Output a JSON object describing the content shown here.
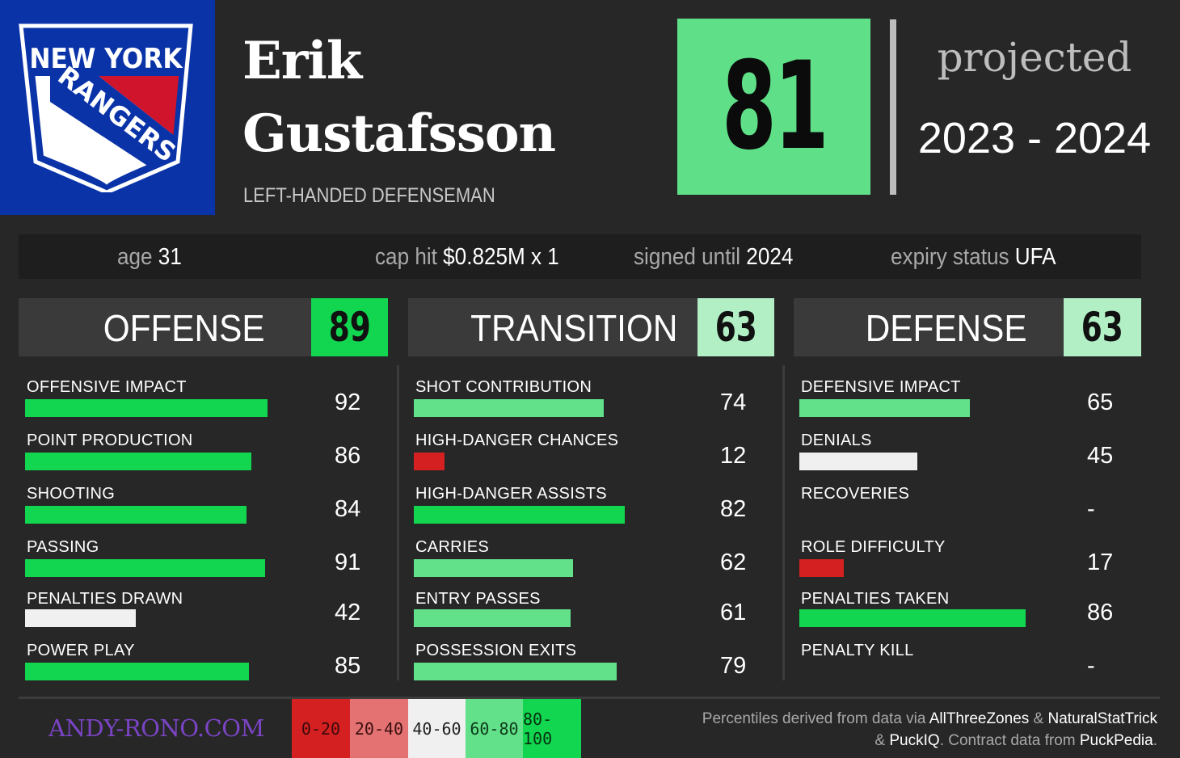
{
  "team": {
    "logo_top": "NEW YORK",
    "logo_band": "RANGERS",
    "colors": {
      "blue": "#0a33a8",
      "red": "#d0142c"
    }
  },
  "player": {
    "first_name": "Erik",
    "last_name": "Gustafsson",
    "position": "LEFT-HANDED DEFENSEMAN"
  },
  "overall": {
    "score": "81",
    "label": "projected",
    "season": "2023 - 2024"
  },
  "info": [
    {
      "label": "age",
      "value": "31"
    },
    {
      "label": "cap hit",
      "value": "$0.825M x 1"
    },
    {
      "label": "signed until",
      "value": "2024"
    },
    {
      "label": "expiry status",
      "value": "UFA"
    }
  ],
  "sections": [
    {
      "title": "OFFENSE",
      "score": "89",
      "score_color": "#12d650",
      "metrics": [
        {
          "label": "OFFENSIVE IMPACT",
          "value": "92",
          "pct": 92,
          "color": "#12d650"
        },
        {
          "label": "POINT PRODUCTION",
          "value": "86",
          "pct": 86,
          "color": "#12d650"
        },
        {
          "label": "SHOOTING",
          "value": "84",
          "pct": 84,
          "color": "#12d650"
        },
        {
          "label": "PASSING",
          "value": "91",
          "pct": 91,
          "color": "#12d650"
        },
        {
          "label": "PENALTIES DRAWN",
          "value": "42",
          "pct": 42,
          "color": "#f0f0f0"
        },
        {
          "label": "POWER PLAY",
          "value": "85",
          "pct": 85,
          "color": "#12d650"
        }
      ]
    },
    {
      "title": "TRANSITION",
      "score": "63",
      "score_color": "#b2efc5",
      "metrics": [
        {
          "label": "SHOT CONTRIBUTION",
          "value": "74",
          "pct": 74,
          "color": "#62e08a"
        },
        {
          "label": "HIGH-DANGER CHANCES",
          "value": "12",
          "pct": 12,
          "color": "#d42020"
        },
        {
          "label": "HIGH-DANGER ASSISTS",
          "value": "82",
          "pct": 82,
          "color": "#12d650"
        },
        {
          "label": "CARRIES",
          "value": "62",
          "pct": 62,
          "color": "#62e08a"
        },
        {
          "label": "ENTRY PASSES",
          "value": "61",
          "pct": 61,
          "color": "#62e08a"
        },
        {
          "label": "POSSESSION EXITS",
          "value": "79",
          "pct": 79,
          "color": "#62e08a"
        }
      ]
    },
    {
      "title": "DEFENSE",
      "score": "63",
      "score_color": "#b2efc5",
      "metrics": [
        {
          "label": "DEFENSIVE IMPACT",
          "value": "65",
          "pct": 65,
          "color": "#62e08a"
        },
        {
          "label": "DENIALS",
          "value": "45",
          "pct": 45,
          "color": "#f0f0f0"
        },
        {
          "label": "RECOVERIES",
          "value": "-",
          "pct": 0,
          "color": "#272727"
        },
        {
          "label": "ROLE DIFFICULTY",
          "value": "17",
          "pct": 17,
          "color": "#d42020"
        },
        {
          "label": "PENALTIES TAKEN",
          "value": "86",
          "pct": 86,
          "color": "#12d650"
        },
        {
          "label": "PENALTY KILL",
          "value": "-",
          "pct": 0,
          "color": "#272727"
        }
      ]
    }
  ],
  "footer": {
    "site": "ANDY-RONO.COM",
    "legend": [
      {
        "label": "0-20",
        "bg": "#d42020",
        "fg": "#3a0a0a"
      },
      {
        "label": "20-40",
        "bg": "#e57272",
        "fg": "#3a1010"
      },
      {
        "label": "40-60",
        "bg": "#f0f0f0",
        "fg": "#222222"
      },
      {
        "label": "60-80",
        "bg": "#62e08a",
        "fg": "#0c3a18"
      },
      {
        "label": "80-100",
        "bg": "#12d650",
        "fg": "#05300f"
      }
    ],
    "credits": {
      "line1_prefix": "Percentiles derived from data via ",
      "source1": "AllThreeZones",
      "amp1": " & ",
      "source2": "NaturalStatTrick",
      "line2_prefix": "& ",
      "source3": "PuckIQ",
      "line2_mid": ". Contract data from ",
      "source4": "PuckPedia",
      "line2_end": "."
    }
  }
}
